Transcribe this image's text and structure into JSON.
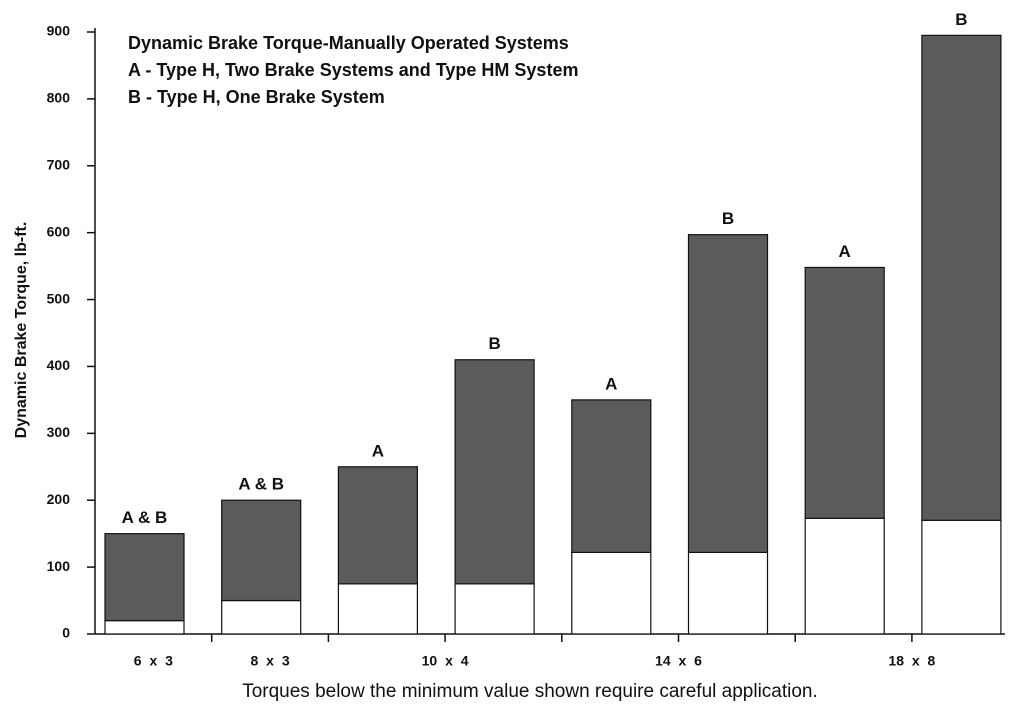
{
  "chart_data": {
    "type": "range_bar",
    "title_lines": [
      "Dynamic Brake Torque-Manually Operated Systems",
      "A - Type H, Two Brake Systems and Type HM System",
      "B - Type H, One Brake System"
    ],
    "y_label": "Dynamic Brake Torque, lb-ft.",
    "x_label": "Torques below the minimum value shown require careful application.",
    "groups": [
      {
        "name": "6 x 3",
        "bars": [
          {
            "label": "A & B",
            "low": 20,
            "high": 150
          }
        ]
      },
      {
        "name": "8 x 3",
        "bars": [
          {
            "label": "A & B",
            "low": 50,
            "high": 200
          }
        ]
      },
      {
        "name": "10 x 4",
        "bars": [
          {
            "label": "A",
            "low": 75,
            "high": 250
          },
          {
            "label": "B",
            "low": 75,
            "high": 410
          }
        ]
      },
      {
        "name": "14 x 6",
        "bars": [
          {
            "label": "A",
            "low": 122,
            "high": 350
          },
          {
            "label": "B",
            "low": 122,
            "high": 597
          }
        ]
      },
      {
        "name": "18 x 8",
        "bars": [
          {
            "label": "A",
            "low": 173,
            "high": 548
          },
          {
            "label": "B",
            "low": 170,
            "high": 895
          }
        ]
      }
    ],
    "colors": {
      "range": "#5b5b5b",
      "below": "#ffffff"
    },
    "ylim": [
      0,
      900
    ],
    "yticks": [
      0,
      100,
      200,
      300,
      400,
      500,
      600,
      700,
      800,
      900
    ]
  }
}
